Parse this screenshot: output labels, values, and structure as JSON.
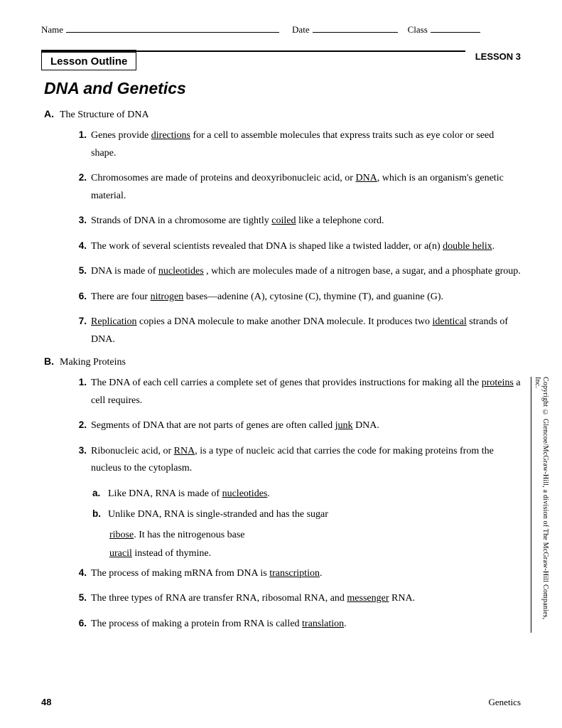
{
  "header": {
    "name_label": "Name",
    "date_label": "Date",
    "class_label": "Class"
  },
  "lesson_box": "Lesson Outline",
  "lesson_no": "LESSON 3",
  "title": "DNA and Genetics",
  "sections": [
    {
      "letter": "A.",
      "title": "The Structure of DNA",
      "items": [
        {
          "num": "1.",
          "pre": "Genes provide ",
          "u": "directions",
          "post": " for a cell to assemble molecules that express traits such as eye color or seed shape."
        },
        {
          "num": "2.",
          "pre": "Chromosomes are made of proteins and deoxyribonucleic acid, or ",
          "u": "DNA",
          "post": ", which is an organism's genetic material."
        },
        {
          "num": "3.",
          "pre": "Strands of DNA in a chromosome are tightly ",
          "u": "coiled",
          "post": " like a telephone cord."
        },
        {
          "num": "4.",
          "pre": "The work of several scientists revealed that DNA is shaped like a twisted ladder, or a(n) ",
          "u": "double helix",
          "post": "."
        },
        {
          "num": "5.",
          "pre": "DNA is made of ",
          "u": "nucleotides",
          "post": " , which are molecules made of a nitrogen base, a sugar, and a phosphate group."
        },
        {
          "num": "6.",
          "pre": "There are four ",
          "u": "nitrogen",
          "post": " bases—adenine (A), cytosine (C), thymine (T), and guanine (G)."
        },
        {
          "num": "7.",
          "pre": "",
          "u": "Replication",
          "post": " copies a DNA molecule to make another DNA molecule. It produces two ",
          "u2": "identical",
          "post2": " strands of DNA."
        }
      ]
    },
    {
      "letter": "B.",
      "title": "Making Proteins",
      "items": [
        {
          "num": "1.",
          "pre": "The DNA of each cell carries a complete set of genes that provides instructions for making all the ",
          "u": "proteins",
          "post": " a cell requires."
        },
        {
          "num": "2.",
          "pre": "Segments of DNA that are not parts of genes are often called ",
          "u": "junk",
          "post": " DNA."
        },
        {
          "num": "3.",
          "pre": "Ribonucleic acid, or ",
          "u": "RNA",
          "post": ", is a type of nucleic acid that carries the code for making proteins from the nucleus to the cytoplasm.",
          "subs": [
            {
              "letter": "a.",
              "pre": "Like DNA, RNA is made of ",
              "u": "nucleotides",
              "post": "."
            },
            {
              "letter": "b.",
              "pre": "Unlike DNA, RNA is single-stranded and has the sugar",
              "u": "",
              "post": "",
              "cont": [
                {
                  "u": "ribose",
                  "post": ". It has the nitrogenous base"
                },
                {
                  "u": "uracil",
                  "post": " instead of thymine."
                }
              ]
            }
          ]
        },
        {
          "num": "4.",
          "pre": "The process of making mRNA from DNA is ",
          "u": "transcription",
          "post": "."
        },
        {
          "num": "5.",
          "pre": "The three types of RNA are transfer RNA, ribosomal RNA, and ",
          "u": "messenger",
          "post": " RNA."
        },
        {
          "num": "6.",
          "pre": "The process of making a protein from RNA is called ",
          "u": "translation",
          "post": "."
        }
      ]
    }
  ],
  "copyright": "Copyright © Glencoe/McGraw-Hill, a division of The McGraw-Hill Companies, Inc.",
  "footer": {
    "page": "48",
    "subject": "Genetics"
  }
}
